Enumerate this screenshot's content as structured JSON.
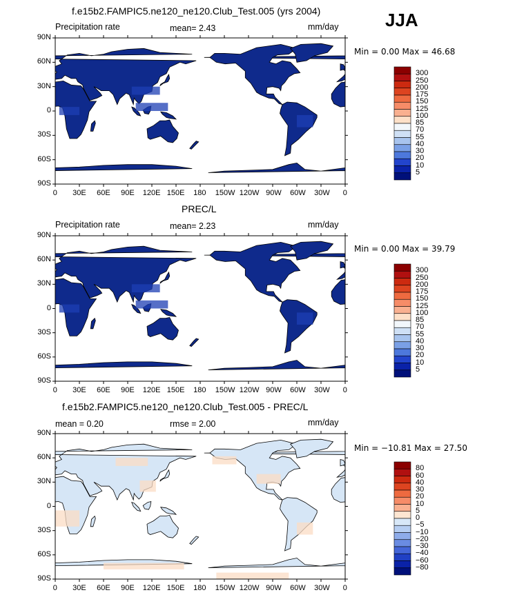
{
  "season": "JJA",
  "panels": [
    {
      "title": "f.e15b2.FAMPIC5.ne120_ne120.Club_Test.005 (yrs 2004)",
      "left_label": "Precipitation rate",
      "center_label": "mean=    2.43",
      "units": "mm/day",
      "minmax": "Min =    0.00  Max =   46.68",
      "levels": [
        "300",
        "250",
        "200",
        "175",
        "150",
        "125",
        "100",
        "85",
        "70",
        "55",
        "40",
        "30",
        "20",
        "10",
        "5"
      ],
      "colors": [
        "#8b0000",
        "#b01010",
        "#cc2a10",
        "#dd4420",
        "#ee6a40",
        "#f68c68",
        "#f9b090",
        "#fde0c8",
        "#f2f7fb",
        "#cfe0f5",
        "#a8c4ee",
        "#7aa0e6",
        "#4d78dc",
        "#2244cc",
        "#0a22a8",
        "#00107a"
      ]
    },
    {
      "title": "PREC/L",
      "left_label": "Precipitation rate",
      "center_label": "mean=    2.23",
      "units": "mm/day",
      "minmax": "Min =    0.00  Max =   39.79",
      "levels": [
        "300",
        "250",
        "200",
        "175",
        "150",
        "125",
        "100",
        "85",
        "70",
        "55",
        "40",
        "30",
        "20",
        "10",
        "5"
      ],
      "colors": [
        "#8b0000",
        "#b01010",
        "#cc2a10",
        "#dd4420",
        "#ee6a40",
        "#f68c68",
        "#f9b090",
        "#fde0c8",
        "#f2f7fb",
        "#cfe0f5",
        "#a8c4ee",
        "#7aa0e6",
        "#4d78dc",
        "#2244cc",
        "#0a22a8",
        "#00107a"
      ]
    },
    {
      "title": "f.e15b2.FAMPIC5.ne120_ne120.Club_Test.005 - PREC/L",
      "left_label": "mean =    0.20",
      "center_label": "rmse =    2.00",
      "units": "mm/day",
      "minmax": "Min = −10.81  Max =   27.50",
      "levels": [
        "80",
        "60",
        "40",
        "30",
        "20",
        "10",
        "5",
        "0",
        "−5",
        "−10",
        "−20",
        "−30",
        "−40",
        "−60",
        "−80"
      ],
      "colors": [
        "#8b0000",
        "#b01010",
        "#cc2a10",
        "#dd4420",
        "#ee6a40",
        "#f68c68",
        "#f9b090",
        "#fde6d2",
        "#d8e8f8",
        "#b6cef2",
        "#8eacea",
        "#6a8ce2",
        "#4466d8",
        "#2040c4",
        "#0a22a8",
        "#00107a"
      ]
    }
  ],
  "axes": {
    "lat_labels": [
      "90N",
      "60N",
      "30N",
      "0",
      "30S",
      "60S",
      "90S"
    ],
    "lon_labels": [
      "0",
      "30E",
      "60E",
      "90E",
      "120E",
      "150E",
      "180",
      "150W",
      "120W",
      "90W",
      "60W",
      "30W",
      "0"
    ]
  },
  "colors": {
    "land_precip": "#0f2a8c",
    "land_precip_wet": "#1e3fb4",
    "land_diff": "#d6e6f6",
    "land_diff_pos": "#fbdcc4",
    "coast": "#000000"
  }
}
